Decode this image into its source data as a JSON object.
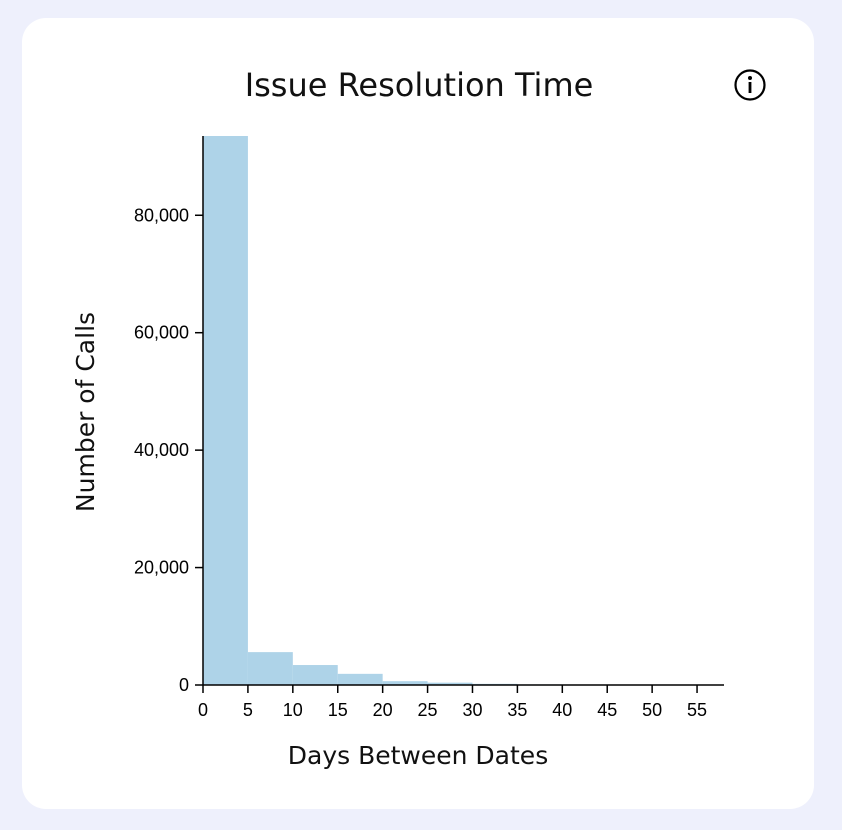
{
  "title": "Issue Resolution Time",
  "info_icon": "info-circle-icon",
  "colors": {
    "page_bg": "#eef0fc",
    "card_bg": "#ffffff",
    "bar": "#aed3e8"
  },
  "chart_data": {
    "type": "bar",
    "xlabel": "Days Between Dates",
    "ylabel": "Number of Calls",
    "bins": [
      {
        "x0": 0,
        "x1": 5,
        "value": 93500
      },
      {
        "x0": 5,
        "x1": 10,
        "value": 5600
      },
      {
        "x0": 10,
        "x1": 15,
        "value": 3400
      },
      {
        "x0": 15,
        "x1": 20,
        "value": 1900
      },
      {
        "x0": 20,
        "x1": 25,
        "value": 650
      },
      {
        "x0": 25,
        "x1": 30,
        "value": 400
      },
      {
        "x0": 30,
        "x1": 35,
        "value": 200
      },
      {
        "x0": 35,
        "x1": 40,
        "value": 90
      },
      {
        "x0": 40,
        "x1": 45,
        "value": 50
      },
      {
        "x0": 45,
        "x1": 50,
        "value": 30
      },
      {
        "x0": 50,
        "x1": 55,
        "value": 20
      },
      {
        "x0": 55,
        "x1": 57,
        "value": 10
      }
    ],
    "xlim": [
      0,
      58
    ],
    "ylim": [
      0,
      93500
    ],
    "x_ticks": [
      0,
      5,
      10,
      15,
      20,
      25,
      30,
      35,
      40,
      45,
      50,
      55
    ],
    "x_tick_labels": [
      "0",
      "5",
      "10",
      "15",
      "20",
      "25",
      "30",
      "35",
      "40",
      "45",
      "50",
      "55"
    ],
    "y_ticks": [
      0,
      20000,
      40000,
      60000,
      80000
    ],
    "y_tick_labels": [
      "0",
      "20,000",
      "40,000",
      "60,000",
      "80,000"
    ],
    "grid": false,
    "legend": "none"
  }
}
